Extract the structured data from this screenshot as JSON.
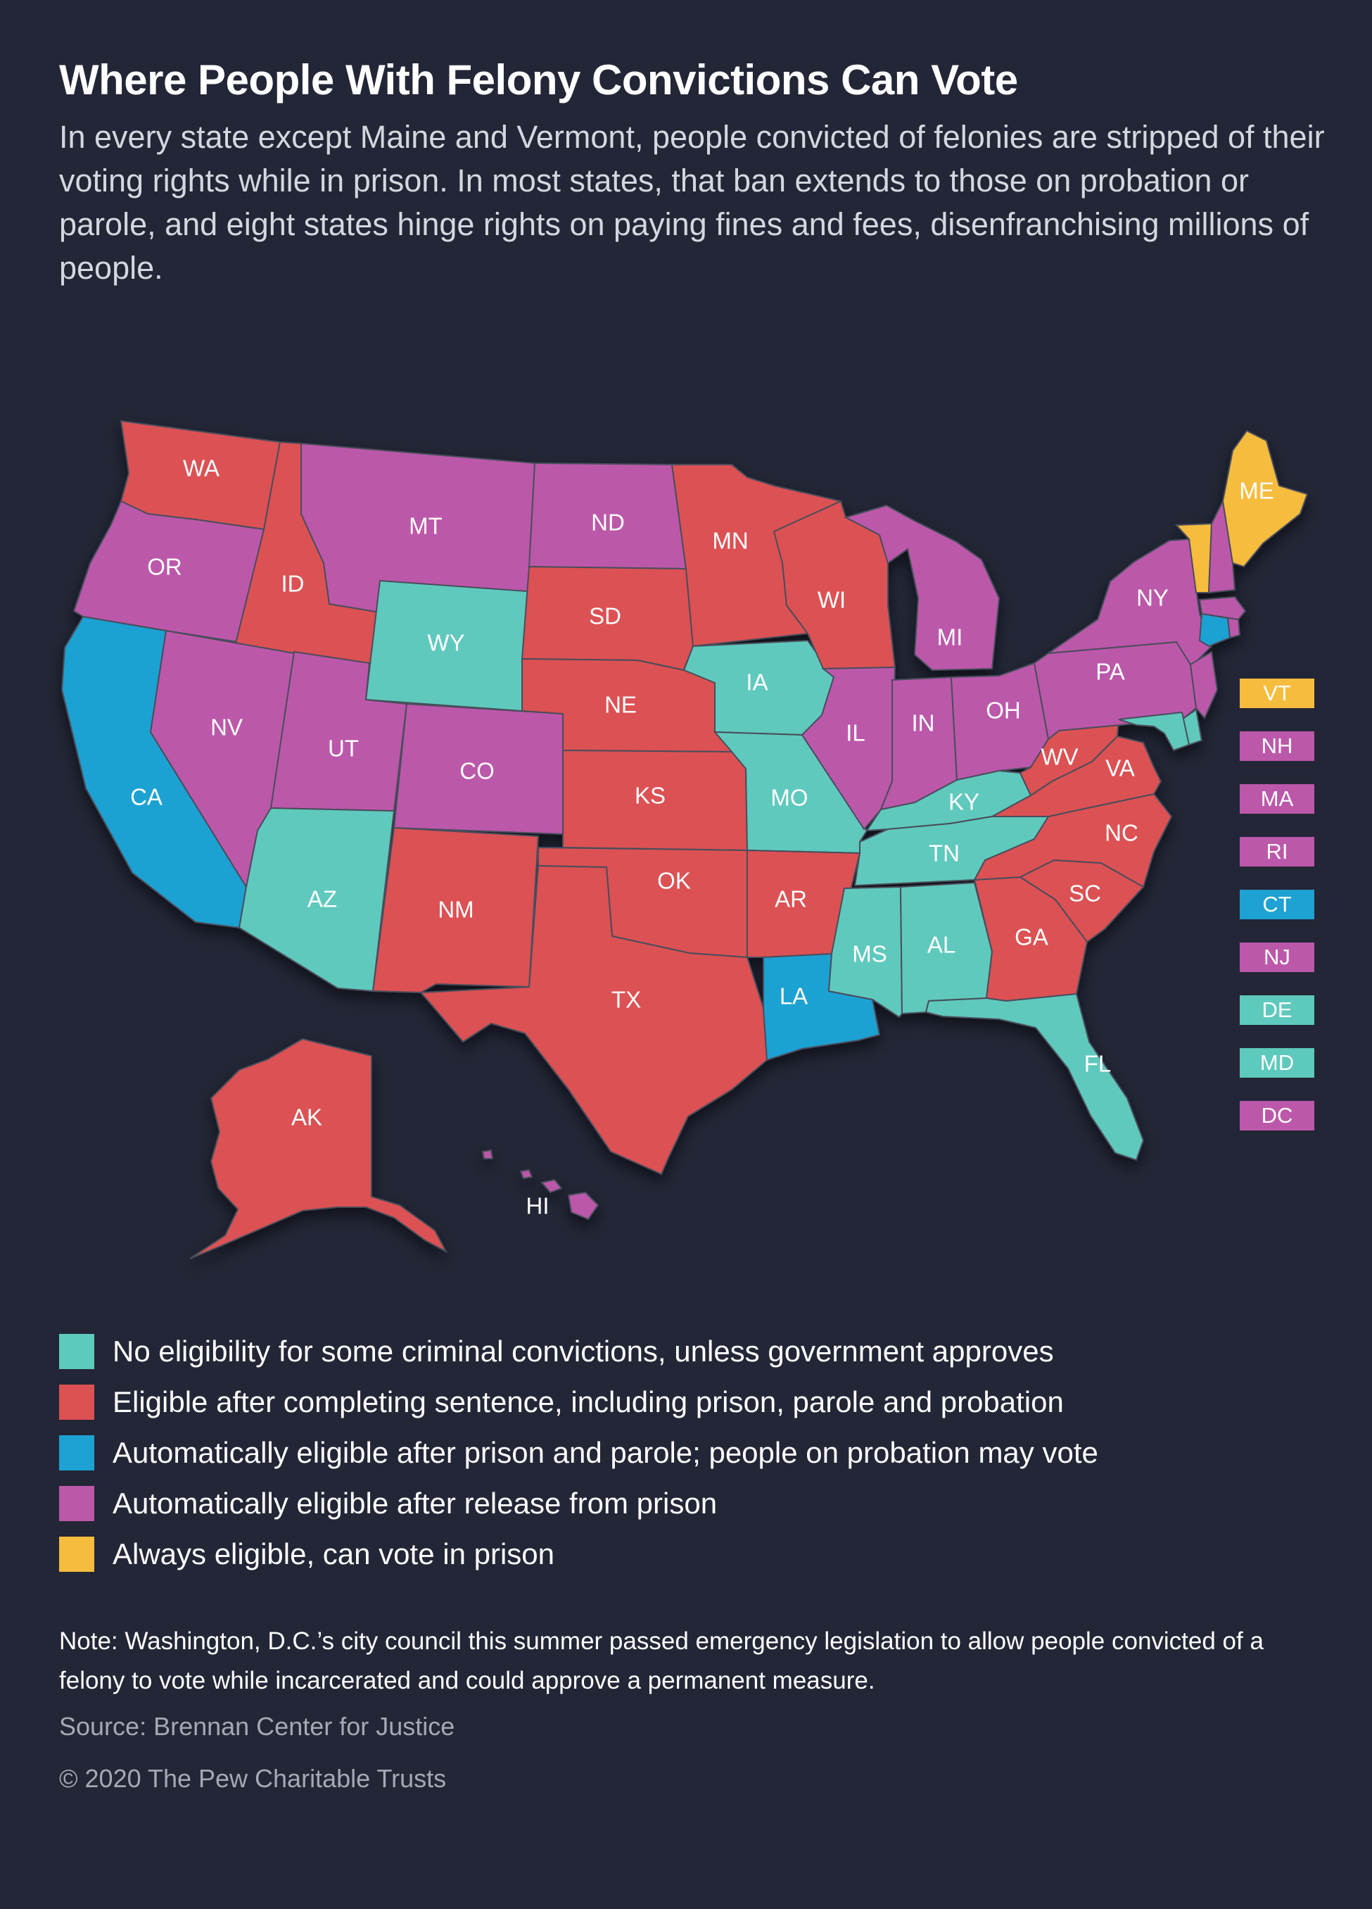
{
  "title": "Where People With Felony Convictions Can Vote",
  "subtitle": "In every state except Maine and Vermont, people convicted of felonies are stripped of their voting rights while in prison. In most states, that ban extends to those on probation or parole, and eight states hinge rights on paying fines and fees, disenfranchising millions of people.",
  "categories": {
    "teal": {
      "color": "#5ec9bd",
      "label": "No eligibility for some criminal convictions, unless government approves"
    },
    "red": {
      "color": "#dc5152",
      "label": "Eligible after completing sentence, including prison, parole and probation"
    },
    "blue": {
      "color": "#1ea1d3",
      "label": "Automatically eligible after prison and parole; people on probation may vote"
    },
    "purple": {
      "color": "#bc58aa",
      "label": "Automatically eligible after release from prison"
    },
    "yellow": {
      "color": "#f6bc3e",
      "label": "Always eligible, can vote in prison"
    }
  },
  "legend_order": [
    "teal",
    "red",
    "blue",
    "purple",
    "yellow"
  ],
  "states": {
    "WA": "red",
    "OR": "purple",
    "CA": "blue",
    "ID": "red",
    "NV": "purple",
    "MT": "purple",
    "WY": "teal",
    "UT": "purple",
    "AZ": "teal",
    "CO": "purple",
    "NM": "red",
    "ND": "purple",
    "SD": "red",
    "NE": "red",
    "KS": "red",
    "OK": "red",
    "TX": "red",
    "MN": "red",
    "IA": "teal",
    "MO": "teal",
    "AR": "red",
    "LA": "blue",
    "WI": "red",
    "IL": "purple",
    "MI": "purple",
    "IN": "purple",
    "OH": "purple",
    "KY": "teal",
    "TN": "teal",
    "MS": "teal",
    "AL": "teal",
    "GA": "red",
    "FL": "teal",
    "SC": "red",
    "NC": "red",
    "VA": "red",
    "WV": "red",
    "PA": "purple",
    "NY": "purple",
    "ME": "yellow",
    "AK": "red",
    "HI": "purple",
    "VT": "yellow",
    "NH": "purple",
    "MA": "purple",
    "RI": "purple",
    "CT": "blue",
    "NJ": "purple",
    "DE": "teal",
    "MD": "teal",
    "DC": "purple"
  },
  "small_states": [
    "VT",
    "NH",
    "MA",
    "RI",
    "CT",
    "NJ",
    "DE",
    "MD",
    "DC"
  ],
  "note": "Note: Washington, D.C.’s city council this summer passed emergency legislation to allow people convicted of a felony to vote while incarcerated and could approve a permanent measure.",
  "source": "Source: Brennan Center for Justice",
  "copyright": "© 2020 The Pew Charitable Trusts"
}
